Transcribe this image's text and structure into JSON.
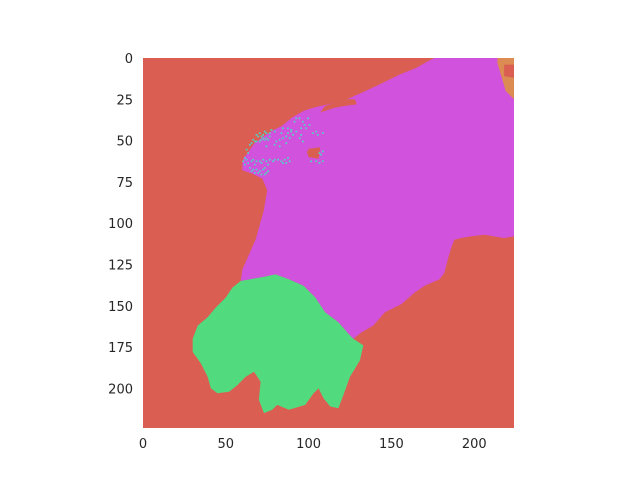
{
  "chart_data": {
    "type": "heatmap",
    "title": "",
    "xlabel": "",
    "ylabel": "",
    "xlim": [
      0,
      224
    ],
    "ylim": [
      224,
      0
    ],
    "y_axis_inverted": true,
    "x_ticks": [
      0,
      50,
      100,
      150,
      200
    ],
    "y_ticks": [
      0,
      25,
      50,
      75,
      100,
      125,
      150,
      175,
      200
    ],
    "grid": false,
    "legend": "none",
    "description_of_values": "Categorical segmentation mask (224x224 pixels), each class shown as a flat color",
    "classes": [
      {
        "id": 0,
        "color": "#da5f52",
        "role": "background"
      },
      {
        "id": 1,
        "color": "#d052dd",
        "role": "large central region"
      },
      {
        "id": 2,
        "color": "#52da7f",
        "role": "lower-left region"
      },
      {
        "id": 3,
        "color": "#52d3c4",
        "role": "scattered pixels along upper-left edge"
      },
      {
        "id": 4,
        "color": "#dc8c52",
        "role": "small patch at top-right corner"
      }
    ],
    "regions": [
      {
        "class": 1,
        "outline": [
          [
            63,
            58
          ],
          [
            67,
            52
          ],
          [
            72,
            48
          ],
          [
            78,
            44
          ],
          [
            84,
            41
          ],
          [
            90,
            36
          ],
          [
            97,
            32
          ],
          [
            103,
            30
          ],
          [
            112,
            28
          ],
          [
            121,
            26
          ],
          [
            132,
            21
          ],
          [
            143,
            16
          ],
          [
            155,
            10
          ],
          [
            165,
            6
          ],
          [
            172,
            2
          ],
          [
            176,
            0
          ],
          [
            224,
            0
          ],
          [
            224,
            108
          ],
          [
            218,
            109
          ],
          [
            206,
            107
          ],
          [
            198,
            108
          ],
          [
            192,
            109
          ],
          [
            188,
            110
          ],
          [
            186,
            115
          ],
          [
            184,
            122
          ],
          [
            182,
            130
          ],
          [
            179,
            134
          ],
          [
            170,
            138
          ],
          [
            164,
            142
          ],
          [
            156,
            149
          ],
          [
            146,
            154
          ],
          [
            139,
            162
          ],
          [
            132,
            166
          ],
          [
            127,
            170
          ],
          [
            124,
            167
          ],
          [
            118,
            160
          ],
          [
            110,
            154
          ],
          [
            104,
            145
          ],
          [
            97,
            138
          ],
          [
            88,
            134
          ],
          [
            80,
            131
          ],
          [
            70,
            133
          ],
          [
            59,
            135
          ],
          [
            60,
            128
          ],
          [
            68,
            110
          ],
          [
            73,
            92
          ],
          [
            75,
            80
          ],
          [
            72,
            73
          ],
          [
            66,
            70
          ],
          [
            60,
            68
          ],
          [
            60,
            63
          ],
          [
            61,
            60
          ],
          [
            63,
            58
          ]
        ]
      },
      {
        "class": 2,
        "outline": [
          [
            59,
            135
          ],
          [
            70,
            133
          ],
          [
            80,
            131
          ],
          [
            88,
            134
          ],
          [
            97,
            138
          ],
          [
            104,
            145
          ],
          [
            110,
            154
          ],
          [
            118,
            160
          ],
          [
            124,
            167
          ],
          [
            127,
            170
          ],
          [
            133,
            174
          ],
          [
            131,
            183
          ],
          [
            125,
            193
          ],
          [
            121,
            204
          ],
          [
            118,
            212
          ],
          [
            113,
            211
          ],
          [
            109,
            206
          ],
          [
            106,
            200
          ],
          [
            103,
            203
          ],
          [
            98,
            210
          ],
          [
            88,
            213
          ],
          [
            81,
            210
          ],
          [
            78,
            213
          ],
          [
            73,
            215
          ],
          [
            70,
            207
          ],
          [
            71,
            196
          ],
          [
            67,
            190
          ],
          [
            62,
            193
          ],
          [
            57,
            198
          ],
          [
            52,
            202
          ],
          [
            45,
            203
          ],
          [
            41,
            200
          ],
          [
            39,
            193
          ],
          [
            35,
            185
          ],
          [
            30,
            178
          ],
          [
            30,
            170
          ],
          [
            33,
            162
          ],
          [
            39,
            157
          ],
          [
            44,
            151
          ],
          [
            50,
            145
          ],
          [
            54,
            139
          ],
          [
            59,
            135
          ]
        ]
      },
      {
        "class": 0,
        "outline": [
          [
            116,
            27
          ],
          [
            122,
            25
          ],
          [
            128,
            25
          ],
          [
            129,
            28
          ],
          [
            122,
            29
          ],
          [
            116,
            30
          ],
          [
            110,
            32
          ],
          [
            107,
            33
          ],
          [
            110,
            29
          ],
          [
            116,
            27
          ]
        ]
      },
      {
        "class": 0,
        "outline": [
          [
            100,
            55
          ],
          [
            107,
            54
          ],
          [
            106,
            61
          ],
          [
            100,
            60
          ],
          [
            99,
            57
          ],
          [
            100,
            55
          ]
        ]
      },
      {
        "class": 4,
        "outline": [
          [
            214,
            0
          ],
          [
            224,
            0
          ],
          [
            224,
            25
          ],
          [
            219,
            20
          ],
          [
            216,
            10
          ],
          [
            214,
            3
          ],
          [
            214,
            0
          ]
        ]
      },
      {
        "class": 0,
        "outline": [
          [
            218,
            4
          ],
          [
            224,
            4
          ],
          [
            224,
            12
          ],
          [
            218,
            11
          ],
          [
            218,
            4
          ]
        ]
      }
    ],
    "scattered_points": {
      "class": 3,
      "xy": [
        [
          68,
          46
        ],
        [
          69,
          47
        ],
        [
          70,
          45
        ],
        [
          71,
          47
        ],
        [
          72,
          46
        ],
        [
          73,
          44
        ],
        [
          74,
          45
        ],
        [
          72,
          48
        ],
        [
          74,
          48
        ],
        [
          76,
          47
        ],
        [
          77,
          43
        ],
        [
          76,
          45
        ],
        [
          79,
          44
        ],
        [
          66,
          49
        ],
        [
          67,
          50
        ],
        [
          65,
          51
        ],
        [
          68,
          50
        ],
        [
          70,
          50
        ],
        [
          71,
          49
        ],
        [
          73,
          49
        ],
        [
          75,
          49
        ],
        [
          64,
          52
        ],
        [
          62,
          55
        ],
        [
          63,
          57
        ],
        [
          61,
          60
        ],
        [
          62,
          61
        ],
        [
          60,
          62
        ],
        [
          61,
          64
        ],
        [
          63,
          63
        ],
        [
          65,
          62
        ],
        [
          66,
          61
        ],
        [
          67,
          64
        ],
        [
          68,
          62
        ],
        [
          70,
          62
        ],
        [
          71,
          63
        ],
        [
          72,
          61
        ],
        [
          74,
          62
        ],
        [
          75,
          64
        ],
        [
          76,
          61
        ],
        [
          78,
          62
        ],
        [
          79,
          61
        ],
        [
          81,
          61
        ],
        [
          83,
          62
        ],
        [
          85,
          61
        ],
        [
          87,
          60
        ],
        [
          84,
          63
        ],
        [
          86,
          63
        ],
        [
          88,
          62
        ],
        [
          64,
          66
        ],
        [
          65,
          68
        ],
        [
          66,
          67
        ],
        [
          67,
          69
        ],
        [
          68,
          67
        ],
        [
          69,
          69
        ],
        [
          70,
          68
        ],
        [
          71,
          70
        ],
        [
          73,
          70
        ],
        [
          74,
          69
        ],
        [
          75,
          68
        ],
        [
          72,
          67
        ],
        [
          73,
          66
        ],
        [
          82,
          49
        ],
        [
          84,
          48
        ],
        [
          86,
          47
        ],
        [
          88,
          48
        ],
        [
          83,
          45
        ],
        [
          87,
          45
        ],
        [
          89,
          44
        ],
        [
          90,
          46
        ],
        [
          92,
          44
        ],
        [
          95,
          42
        ],
        [
          97,
          40
        ],
        [
          98,
          42
        ],
        [
          100,
          40
        ],
        [
          96,
          38
        ],
        [
          99,
          36
        ],
        [
          94,
          36
        ],
        [
          92,
          36
        ],
        [
          91,
          38
        ],
        [
          95,
          46
        ],
        [
          94,
          48
        ],
        [
          89,
          43
        ],
        [
          87,
          42
        ],
        [
          84,
          42
        ],
        [
          102,
          45
        ],
        [
          104,
          44
        ],
        [
          105,
          46
        ],
        [
          108,
          45
        ],
        [
          101,
          62
        ],
        [
          104,
          62
        ],
        [
          106,
          63
        ],
        [
          108,
          62
        ],
        [
          106,
          57
        ],
        [
          107,
          58
        ],
        [
          108,
          56
        ],
        [
          96,
          50
        ],
        [
          86,
          51
        ],
        [
          80,
          50
        ],
        [
          79,
          52
        ],
        [
          82,
          53
        ],
        [
          74,
          53
        ]
      ]
    }
  }
}
